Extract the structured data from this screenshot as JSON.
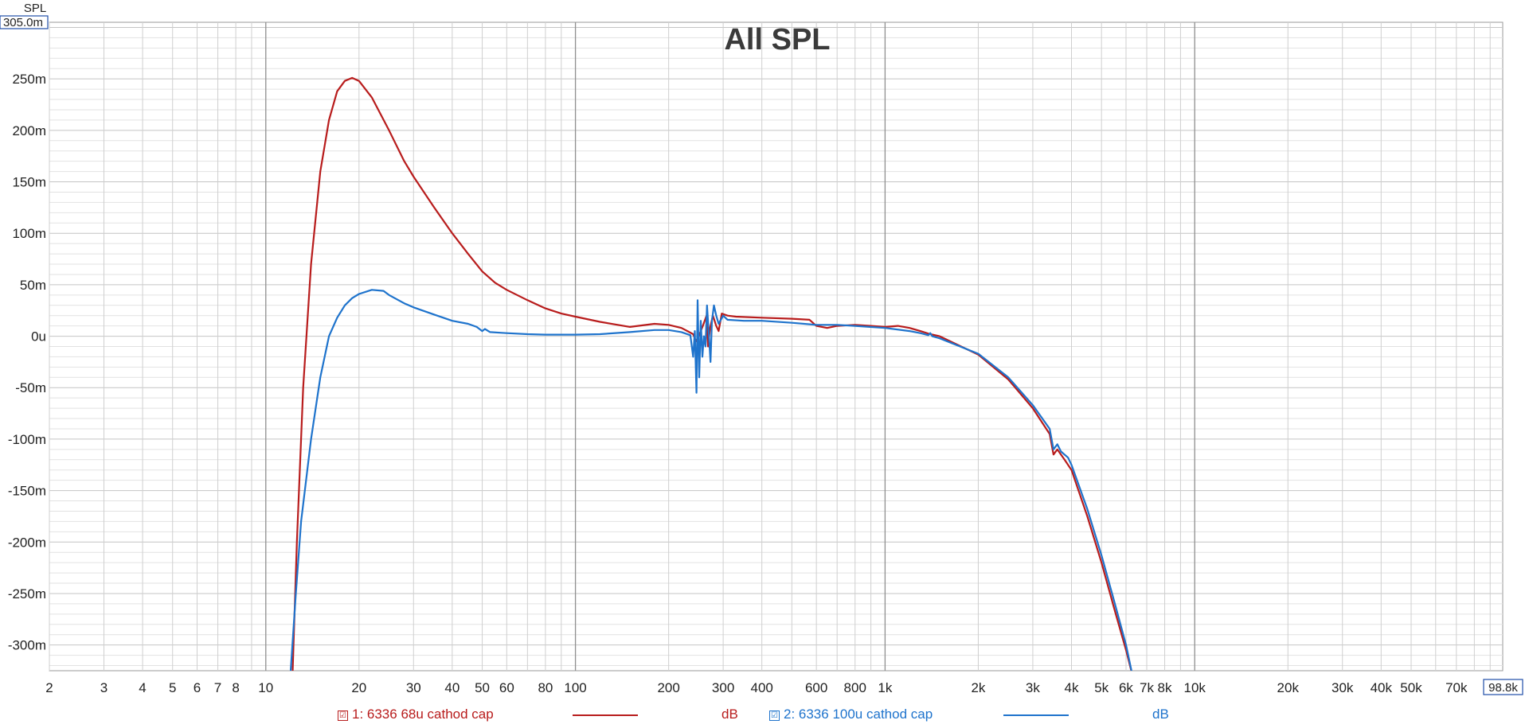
{
  "chart_data": {
    "type": "line",
    "title": "All SPL",
    "ylabel": "SPL",
    "y_top_label": "305.0m",
    "x_right_label": "98.8k",
    "x_scale": "log",
    "xlim": [
      2,
      98800
    ],
    "ylim": [
      -0.325,
      0.305
    ],
    "grid": true,
    "x_ticks": [
      {
        "v": 2,
        "label": "2"
      },
      {
        "v": 3,
        "label": "3"
      },
      {
        "v": 4,
        "label": "4"
      },
      {
        "v": 5,
        "label": "5"
      },
      {
        "v": 6,
        "label": "6"
      },
      {
        "v": 7,
        "label": "7"
      },
      {
        "v": 8,
        "label": "8"
      },
      {
        "v": 10,
        "label": "10"
      },
      {
        "v": 20,
        "label": "20"
      },
      {
        "v": 30,
        "label": "30"
      },
      {
        "v": 40,
        "label": "40"
      },
      {
        "v": 50,
        "label": "50"
      },
      {
        "v": 60,
        "label": "60"
      },
      {
        "v": 80,
        "label": "80"
      },
      {
        "v": 100,
        "label": "100"
      },
      {
        "v": 200,
        "label": "200"
      },
      {
        "v": 300,
        "label": "300"
      },
      {
        "v": 400,
        "label": "400"
      },
      {
        "v": 600,
        "label": "600"
      },
      {
        "v": 800,
        "label": "800"
      },
      {
        "v": 1000,
        "label": "1k"
      },
      {
        "v": 2000,
        "label": "2k"
      },
      {
        "v": 3000,
        "label": "3k"
      },
      {
        "v": 4000,
        "label": "4k"
      },
      {
        "v": 5000,
        "label": "5k"
      },
      {
        "v": 6000,
        "label": "6k"
      },
      {
        "v": 7000,
        "label": "7k"
      },
      {
        "v": 8000,
        "label": "8k"
      },
      {
        "v": 10000,
        "label": "10k"
      },
      {
        "v": 20000,
        "label": "20k"
      },
      {
        "v": 30000,
        "label": "30k"
      },
      {
        "v": 40000,
        "label": "40k"
      },
      {
        "v": 50000,
        "label": "50k"
      },
      {
        "v": 70000,
        "label": "70k"
      }
    ],
    "y_ticks": [
      {
        "v": 0.25,
        "label": "250m"
      },
      {
        "v": 0.2,
        "label": "200m"
      },
      {
        "v": 0.15,
        "label": "150m"
      },
      {
        "v": 0.1,
        "label": "100m"
      },
      {
        "v": 0.05,
        "label": "50m"
      },
      {
        "v": 0,
        "label": "0u"
      },
      {
        "v": -0.05,
        "label": "-50m"
      },
      {
        "v": -0.1,
        "label": "-100m"
      },
      {
        "v": -0.15,
        "label": "-150m"
      },
      {
        "v": -0.2,
        "label": "-200m"
      },
      {
        "v": -0.25,
        "label": "-250m"
      },
      {
        "v": -0.3,
        "label": "-300m"
      }
    ],
    "series": [
      {
        "name": "1: 6336 68u cathod cap",
        "unit": "dB",
        "color": "#b81c1c",
        "points": [
          [
            12.2,
            -0.33
          ],
          [
            12.6,
            -0.2
          ],
          [
            13.2,
            -0.05
          ],
          [
            14,
            0.07
          ],
          [
            15,
            0.16
          ],
          [
            16,
            0.21
          ],
          [
            17,
            0.238
          ],
          [
            18,
            0.248
          ],
          [
            19,
            0.251
          ],
          [
            20,
            0.248
          ],
          [
            22,
            0.232
          ],
          [
            25,
            0.2
          ],
          [
            28,
            0.17
          ],
          [
            30,
            0.155
          ],
          [
            35,
            0.125
          ],
          [
            40,
            0.1
          ],
          [
            45,
            0.08
          ],
          [
            50,
            0.063
          ],
          [
            55,
            0.052
          ],
          [
            60,
            0.045
          ],
          [
            70,
            0.035
          ],
          [
            80,
            0.027
          ],
          [
            90,
            0.022
          ],
          [
            100,
            0.019
          ],
          [
            120,
            0.014
          ],
          [
            150,
            0.009
          ],
          [
            180,
            0.012
          ],
          [
            200,
            0.011
          ],
          [
            220,
            0.008
          ],
          [
            230,
            0.005
          ],
          [
            240,
            0.002
          ],
          [
            245,
            -0.005
          ],
          [
            250,
            0.0
          ],
          [
            258,
            0.01
          ],
          [
            265,
            0.02
          ],
          [
            268,
            -0.01
          ],
          [
            272,
            0.008
          ],
          [
            278,
            0.02
          ],
          [
            285,
            0.01
          ],
          [
            290,
            0.005
          ],
          [
            297,
            0.022
          ],
          [
            310,
            0.02
          ],
          [
            330,
            0.019
          ],
          [
            400,
            0.018
          ],
          [
            500,
            0.017
          ],
          [
            570,
            0.016
          ],
          [
            600,
            0.01
          ],
          [
            650,
            0.008
          ],
          [
            700,
            0.01
          ],
          [
            800,
            0.011
          ],
          [
            900,
            0.01
          ],
          [
            1000,
            0.009
          ],
          [
            1100,
            0.01
          ],
          [
            1200,
            0.008
          ],
          [
            1300,
            0.005
          ],
          [
            1400,
            0.002
          ],
          [
            1500,
            0.0
          ],
          [
            2000,
            -0.018
          ],
          [
            2500,
            -0.042
          ],
          [
            3000,
            -0.07
          ],
          [
            3400,
            -0.095
          ],
          [
            3500,
            -0.115
          ],
          [
            3600,
            -0.11
          ],
          [
            3800,
            -0.12
          ],
          [
            4000,
            -0.13
          ],
          [
            4500,
            -0.175
          ],
          [
            5000,
            -0.22
          ],
          [
            5500,
            -0.265
          ],
          [
            6000,
            -0.305
          ],
          [
            6300,
            -0.33
          ]
        ]
      },
      {
        "name": "2: 6336 100u cathod cap",
        "unit": "dB",
        "color": "#1e73cc",
        "points": [
          [
            12,
            -0.33
          ],
          [
            12.5,
            -0.25
          ],
          [
            13,
            -0.18
          ],
          [
            14,
            -0.1
          ],
          [
            15,
            -0.04
          ],
          [
            16,
            0.0
          ],
          [
            17,
            0.018
          ],
          [
            18,
            0.03
          ],
          [
            19,
            0.037
          ],
          [
            20,
            0.041
          ],
          [
            22,
            0.045
          ],
          [
            24,
            0.044
          ],
          [
            25,
            0.04
          ],
          [
            28,
            0.032
          ],
          [
            30,
            0.028
          ],
          [
            35,
            0.021
          ],
          [
            40,
            0.015
          ],
          [
            45,
            0.012
          ],
          [
            48,
            0.009
          ],
          [
            50,
            0.005
          ],
          [
            51,
            0.007
          ],
          [
            53,
            0.004
          ],
          [
            60,
            0.003
          ],
          [
            70,
            0.002
          ],
          [
            80,
            0.0015
          ],
          [
            100,
            0.0015
          ],
          [
            120,
            0.002
          ],
          [
            150,
            0.004
          ],
          [
            180,
            0.006
          ],
          [
            200,
            0.006
          ],
          [
            220,
            0.004
          ],
          [
            235,
            0.001
          ],
          [
            240,
            -0.02
          ],
          [
            243,
            0.005
          ],
          [
            246,
            -0.055
          ],
          [
            248,
            0.035
          ],
          [
            251,
            -0.04
          ],
          [
            254,
            0.015
          ],
          [
            257,
            -0.02
          ],
          [
            260,
            0.0
          ],
          [
            263,
            -0.01
          ],
          [
            266,
            0.03
          ],
          [
            270,
            0.0
          ],
          [
            273,
            -0.025
          ],
          [
            276,
            0.015
          ],
          [
            280,
            0.03
          ],
          [
            285,
            0.02
          ],
          [
            290,
            0.012
          ],
          [
            300,
            0.02
          ],
          [
            310,
            0.016
          ],
          [
            350,
            0.015
          ],
          [
            400,
            0.015
          ],
          [
            500,
            0.013
          ],
          [
            600,
            0.011
          ],
          [
            700,
            0.011
          ],
          [
            800,
            0.01
          ],
          [
            1000,
            0.008
          ],
          [
            1200,
            0.005
          ],
          [
            1300,
            0.003
          ],
          [
            1380,
            0.001
          ],
          [
            1400,
            0.003
          ],
          [
            1420,
            0.0
          ],
          [
            1500,
            -0.002
          ],
          [
            2000,
            -0.017
          ],
          [
            2500,
            -0.04
          ],
          [
            3000,
            -0.067
          ],
          [
            3400,
            -0.09
          ],
          [
            3500,
            -0.11
          ],
          [
            3600,
            -0.105
          ],
          [
            3700,
            -0.112
          ],
          [
            3900,
            -0.118
          ],
          [
            4000,
            -0.125
          ],
          [
            4500,
            -0.168
          ],
          [
            5000,
            -0.213
          ],
          [
            5500,
            -0.258
          ],
          [
            6000,
            -0.3
          ],
          [
            6300,
            -0.33
          ]
        ]
      }
    ]
  },
  "legend": {
    "items": [
      {
        "check": "☑",
        "label": "1: 6336 68u cathod cap",
        "unit": "dB",
        "color": "#b81c1c"
      },
      {
        "check": "☑",
        "label": "2: 6336 100u cathod cap",
        "unit": "dB",
        "color": "#1e73cc"
      }
    ]
  }
}
